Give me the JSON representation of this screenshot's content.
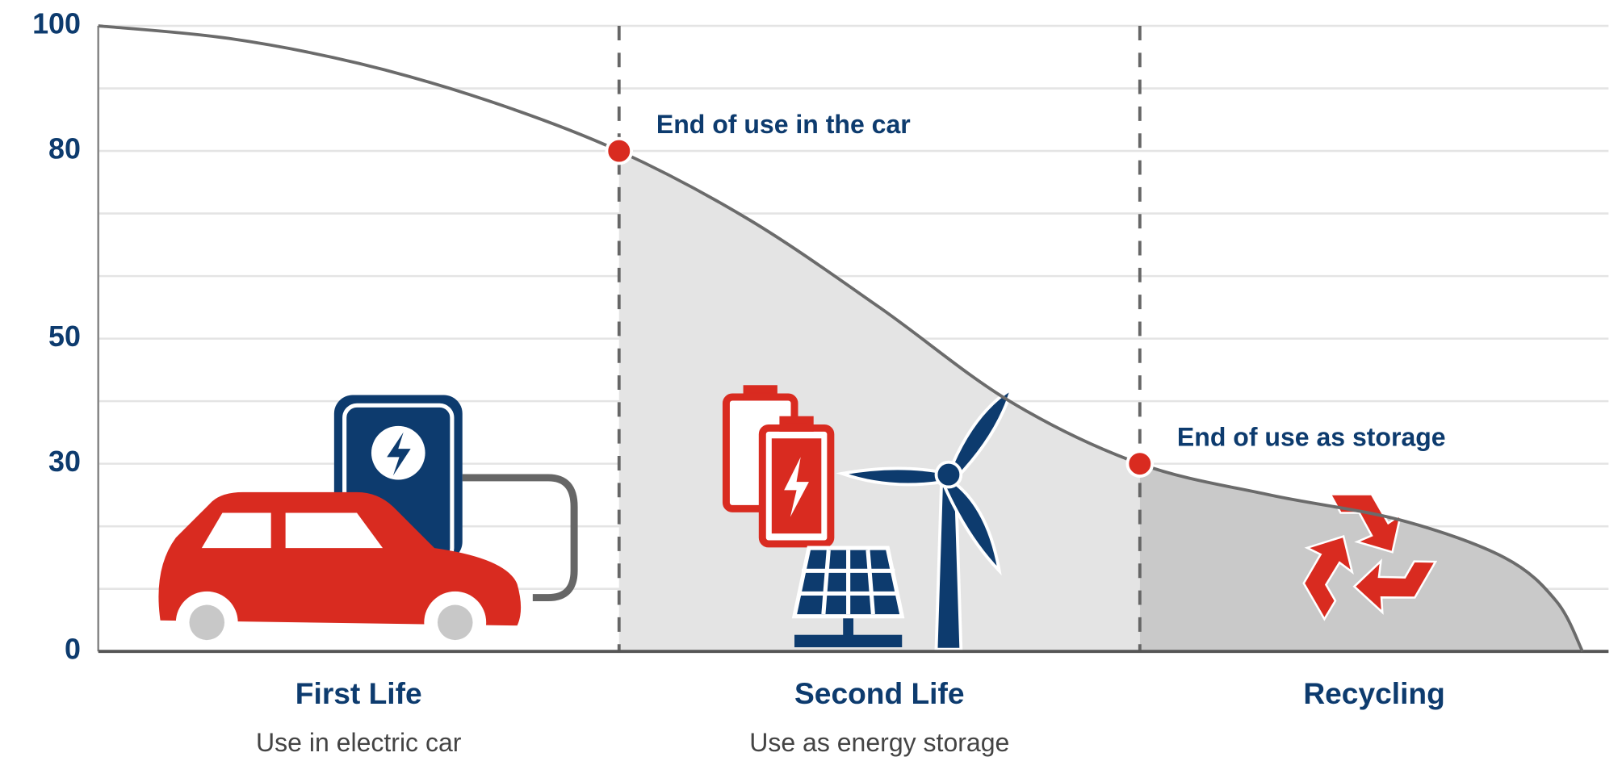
{
  "chart_data": {
    "type": "area",
    "x": [
      0,
      0.25,
      0.5,
      0.75,
      1,
      1.25,
      1.5,
      1.75,
      2,
      2.25,
      2.5,
      2.7,
      2.8,
      2.85
    ],
    "values": [
      100,
      98,
      94,
      88,
      80,
      69,
      55,
      40,
      30,
      25,
      21,
      15,
      8,
      0
    ],
    "color": "#6b6b6b",
    "xlim": [
      0,
      2.9
    ],
    "ylim": [
      0,
      100
    ],
    "yticks": [
      0,
      {
        "value": 10,
        "label": null
      },
      {
        "value": 20,
        "label": null
      },
      30,
      {
        "value": 40,
        "label": null
      },
      50,
      {
        "value": 60,
        "label": null
      },
      {
        "value": 70,
        "label": null
      },
      80,
      {
        "value": 90,
        "label": null
      },
      100
    ],
    "grid": true,
    "markers": [
      {
        "x": 1,
        "y": 80,
        "label": "End of use in the car",
        "color": "#d92b20"
      },
      {
        "x": 2,
        "y": 30,
        "label": "End of use as storage",
        "color": "#d92b20"
      }
    ],
    "phases": [
      {
        "name": "First Life",
        "subtitle": "Use in electric car",
        "x_start": 0,
        "x_end": 1
      },
      {
        "name": "Second Life",
        "subtitle": "Use as energy storage",
        "x_start": 1,
        "x_end": 2,
        "fill": "#e4e4e4"
      },
      {
        "name": "Recycling",
        "x_start": 2,
        "x_end": 2.9,
        "fill": "#c9c9c9"
      }
    ]
  }
}
